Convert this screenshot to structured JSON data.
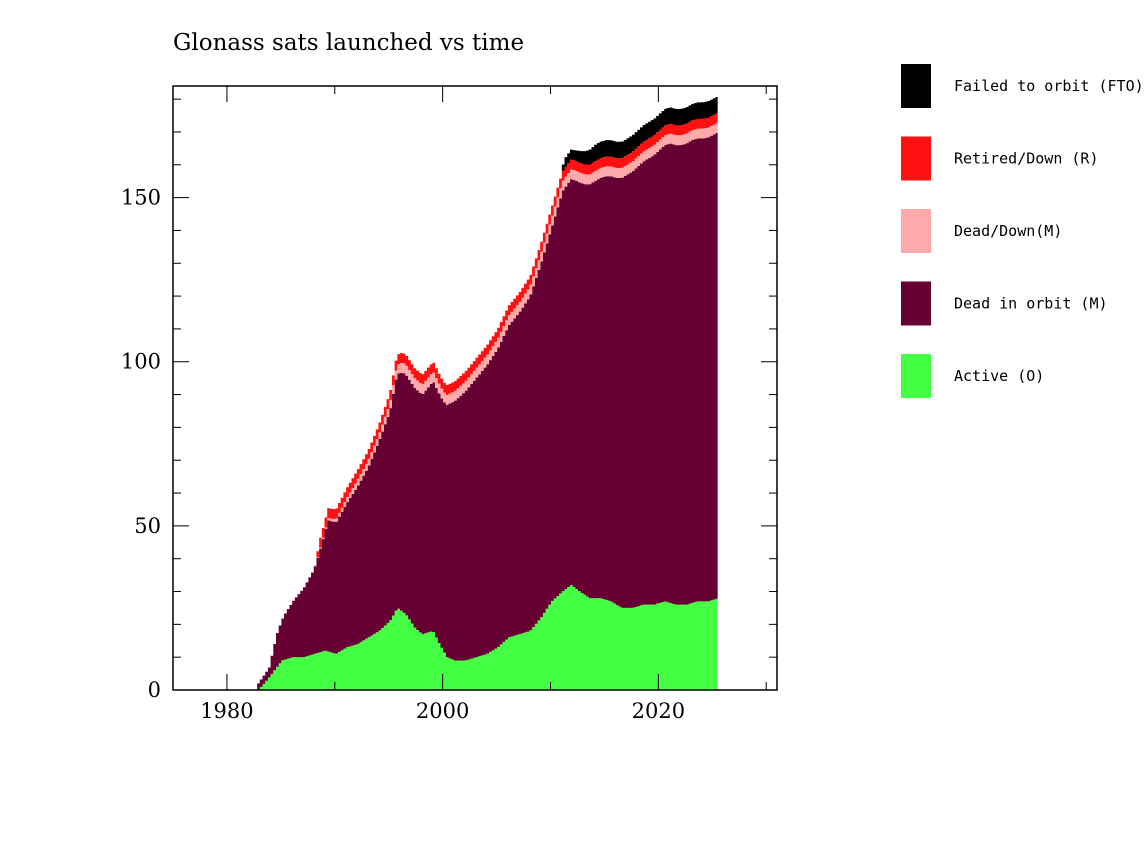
{
  "chart_data": {
    "type": "area",
    "stacked": true,
    "title": "Glonass sats launched vs time",
    "xlabel": "",
    "ylabel": "",
    "xlim": [
      1975,
      2031
    ],
    "ylim": [
      0,
      184
    ],
    "x_ticks": [
      1980,
      2000,
      2020
    ],
    "y_ticks": [
      0,
      50,
      100,
      150
    ],
    "grid": false,
    "legend_position": "right",
    "series": [
      {
        "key": "active",
        "name": "Active (O)",
        "color": "#44ff44",
        "points": [
          [
            1982.8,
            0
          ],
          [
            1983.6,
            3
          ],
          [
            1984.3,
            6
          ],
          [
            1985,
            9
          ],
          [
            1986,
            10
          ],
          [
            1987,
            10
          ],
          [
            1988,
            11
          ],
          [
            1989,
            12
          ],
          [
            1990,
            11
          ],
          [
            1991,
            13
          ],
          [
            1992,
            14
          ],
          [
            1993,
            16
          ],
          [
            1994,
            18
          ],
          [
            1995,
            21
          ],
          [
            1995.7,
            25
          ],
          [
            1996.5,
            23
          ],
          [
            1997.3,
            19
          ],
          [
            1998,
            17
          ],
          [
            1999,
            18
          ],
          [
            1999.6,
            14
          ],
          [
            2000.3,
            10
          ],
          [
            2001,
            9
          ],
          [
            2002,
            9
          ],
          [
            2003,
            10
          ],
          [
            2004,
            11
          ],
          [
            2005,
            13
          ],
          [
            2006,
            16
          ],
          [
            2007,
            17
          ],
          [
            2008,
            18
          ],
          [
            2009,
            22
          ],
          [
            2010,
            27
          ],
          [
            2011,
            30
          ],
          [
            2011.8,
            32
          ],
          [
            2012.6,
            30
          ],
          [
            2013.5,
            28
          ],
          [
            2014.5,
            28
          ],
          [
            2015.5,
            27
          ],
          [
            2016.5,
            25
          ],
          [
            2017.5,
            25
          ],
          [
            2018.5,
            26
          ],
          [
            2019.5,
            26
          ],
          [
            2020.5,
            27
          ],
          [
            2021.5,
            26
          ],
          [
            2022.5,
            26
          ],
          [
            2023.5,
            27
          ],
          [
            2024.5,
            27
          ],
          [
            2025.5,
            28
          ]
        ]
      },
      {
        "key": "dead_orbit",
        "name": "Dead in orbit (M)",
        "color": "#660033",
        "points": [
          [
            1982.8,
            2
          ],
          [
            1983.8,
            3
          ],
          [
            1984.5,
            10
          ],
          [
            1985.3,
            14
          ],
          [
            1986,
            17
          ],
          [
            1987,
            21
          ],
          [
            1988,
            26
          ],
          [
            1988.7,
            33
          ],
          [
            1989.3,
            40
          ],
          [
            1990,
            40
          ],
          [
            1991,
            44
          ],
          [
            1992,
            48
          ],
          [
            1993,
            52
          ],
          [
            1994,
            58
          ],
          [
            1995,
            64
          ],
          [
            1995.6,
            71
          ],
          [
            1996.2,
            73
          ],
          [
            1997,
            73
          ],
          [
            1998,
            73
          ],
          [
            1999,
            76
          ],
          [
            2000,
            76
          ],
          [
            2001,
            79
          ],
          [
            2002,
            82
          ],
          [
            2003,
            85
          ],
          [
            2004,
            88
          ],
          [
            2005,
            91
          ],
          [
            2006,
            95
          ],
          [
            2007,
            98
          ],
          [
            2008,
            102
          ],
          [
            2009,
            108
          ],
          [
            2010,
            114
          ],
          [
            2011,
            122
          ],
          [
            2012,
            124
          ],
          [
            2013,
            125
          ],
          [
            2014,
            127
          ],
          [
            2015,
            129
          ],
          [
            2016,
            130
          ],
          [
            2017,
            132
          ],
          [
            2018,
            134
          ],
          [
            2019,
            136
          ],
          [
            2020,
            138
          ],
          [
            2021,
            140
          ],
          [
            2022,
            140
          ],
          [
            2023,
            141
          ],
          [
            2024,
            141
          ],
          [
            2025.5,
            142
          ]
        ]
      },
      {
        "key": "dead_down",
        "name": "Dead/Down(M)",
        "color": "#ffaaaa",
        "points": [
          [
            1982.8,
            0
          ],
          [
            1988,
            0
          ],
          [
            1990,
            1
          ],
          [
            1992,
            2
          ],
          [
            1994,
            2
          ],
          [
            1996,
            3
          ],
          [
            1998,
            3
          ],
          [
            2000,
            3
          ],
          [
            2002,
            3
          ],
          [
            2004,
            3
          ],
          [
            2006,
            3
          ],
          [
            2008,
            3
          ],
          [
            2010,
            3
          ],
          [
            2012,
            3
          ],
          [
            2014,
            3
          ],
          [
            2016,
            3
          ],
          [
            2018,
            3
          ],
          [
            2020,
            3
          ],
          [
            2022,
            3
          ],
          [
            2024,
            3
          ],
          [
            2025.5,
            3
          ]
        ]
      },
      {
        "key": "retired",
        "name": "Retired/Down (R)",
        "color": "#ff1111",
        "points": [
          [
            1982.8,
            0
          ],
          [
            1988,
            0
          ],
          [
            1988.5,
            3
          ],
          [
            1990,
            3
          ],
          [
            1992,
            3
          ],
          [
            1994,
            3
          ],
          [
            1996,
            3
          ],
          [
            1998,
            3
          ],
          [
            2000,
            3
          ],
          [
            2002,
            3
          ],
          [
            2004,
            3
          ],
          [
            2006,
            3
          ],
          [
            2008,
            3
          ],
          [
            2010,
            3
          ],
          [
            2012,
            3
          ],
          [
            2014,
            3
          ],
          [
            2016,
            3
          ],
          [
            2018,
            3
          ],
          [
            2020,
            3
          ],
          [
            2022,
            3
          ],
          [
            2024,
            3
          ],
          [
            2025.5,
            3
          ]
        ]
      },
      {
        "key": "fto",
        "name": "Failed to orbit (FTO)",
        "color": "#000000",
        "points": [
          [
            1982.8,
            0
          ],
          [
            2010.8,
            0
          ],
          [
            2011.2,
            3
          ],
          [
            2012,
            3
          ],
          [
            2013,
            4
          ],
          [
            2014,
            5
          ],
          [
            2015,
            5
          ],
          [
            2016,
            5
          ],
          [
            2017,
            5
          ],
          [
            2018,
            5
          ],
          [
            2019,
            5
          ],
          [
            2020,
            5
          ],
          [
            2021,
            5
          ],
          [
            2022,
            5
          ],
          [
            2023,
            5
          ],
          [
            2024,
            5
          ],
          [
            2025.5,
            5
          ]
        ]
      }
    ],
    "legend_order": [
      "fto",
      "retired",
      "dead_down",
      "dead_orbit",
      "active"
    ]
  }
}
